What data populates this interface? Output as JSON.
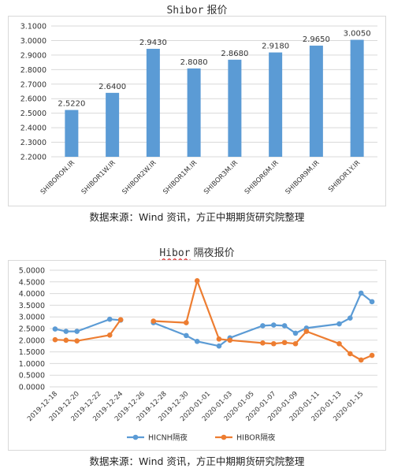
{
  "chart_data": [
    {
      "type": "bar",
      "title_latin": "Shibor",
      "title_rest": " 报价",
      "categories": [
        "SHIBORON.IR",
        "SHIBOR1W.IR",
        "SHIBOR2W.IR",
        "SHIBOR1M.IR",
        "SHIBOR3M.IR",
        "SHIBOR6M.IR",
        "SHIBOR9M.IR",
        "SHIBOR1Y.IR"
      ],
      "values": [
        2.522,
        2.64,
        2.943,
        2.808,
        2.868,
        2.918,
        2.965,
        3.005
      ],
      "value_labels": [
        "2.5220",
        "2.6400",
        "2.9430",
        "2.8080",
        "2.8680",
        "2.9180",
        "2.9650",
        "3.0050"
      ],
      "ylim": [
        2.2,
        3.1
      ],
      "yticks": [
        "2.2000",
        "2.3000",
        "2.4000",
        "2.5000",
        "2.6000",
        "2.7000",
        "2.8000",
        "2.9000",
        "3.0000",
        "3.1000"
      ],
      "bar_color": "#5b9bd5",
      "grid": true,
      "source": "数据来源：Wind 资讯，方正中期期货研究院整理"
    },
    {
      "type": "line",
      "title_latin": "Hibor",
      "title_rest": " 隔夜报价",
      "x_ticks": [
        "2019-12-18",
        "2019-12-20",
        "2019-12-22",
        "2019-12-24",
        "2019-12-26",
        "2019-12-28",
        "2019-12-30",
        "2020-01-01",
        "2020-01-03",
        "2020-01-05",
        "2020-01-07",
        "2020-01-09",
        "2020-01-11",
        "2020-01-13",
        "2020-01-15"
      ],
      "x_range": [
        "2019-12-18",
        "2020-01-16"
      ],
      "ylim": [
        0,
        5
      ],
      "yticks": [
        "0.0000",
        "0.5000",
        "1.0000",
        "1.5000",
        "2.0000",
        "2.5000",
        "3.0000",
        "3.5000",
        "4.0000",
        "4.5000",
        "5.0000"
      ],
      "grid": true,
      "legend": "bottom",
      "series": [
        {
          "name": "HICNH隔夜",
          "color": "#5b9bd5",
          "segments": [
            [
              [
                "2019-12-18",
                2.48
              ],
              [
                "2019-12-19",
                2.38
              ],
              [
                "2019-12-20",
                2.38
              ],
              [
                "2019-12-23",
                2.9
              ],
              [
                "2019-12-24",
                2.86
              ]
            ],
            [
              [
                "2019-12-27",
                2.75
              ],
              [
                "2019-12-30",
                2.2
              ],
              [
                "2019-12-31",
                1.95
              ],
              [
                "2020-01-02",
                1.75
              ],
              [
                "2020-01-03",
                2.1
              ],
              [
                "2020-01-06",
                2.62
              ],
              [
                "2020-01-07",
                2.65
              ],
              [
                "2020-01-08",
                2.62
              ],
              [
                "2020-01-09",
                2.3
              ],
              [
                "2020-01-10",
                2.52
              ],
              [
                "2020-01-13",
                2.7
              ],
              [
                "2020-01-14",
                2.95
              ],
              [
                "2020-01-15",
                4.02
              ],
              [
                "2020-01-16",
                3.65
              ]
            ]
          ]
        },
        {
          "name": "HIBOR隔夜",
          "color": "#ed7d31",
          "segments": [
            [
              [
                "2019-12-18",
                2.02
              ],
              [
                "2019-12-19",
                2.0
              ],
              [
                "2019-12-20",
                1.97
              ],
              [
                "2019-12-23",
                2.22
              ],
              [
                "2019-12-24",
                2.88
              ]
            ],
            [
              [
                "2019-12-27",
                2.82
              ],
              [
                "2019-12-30",
                2.75
              ],
              [
                "2019-12-31",
                4.55
              ],
              [
                "2020-01-02",
                2.05
              ],
              [
                "2020-01-03",
                2.0
              ],
              [
                "2020-01-06",
                1.88
              ],
              [
                "2020-01-07",
                1.85
              ],
              [
                "2020-01-08",
                1.9
              ],
              [
                "2020-01-09",
                1.85
              ],
              [
                "2020-01-10",
                2.38
              ],
              [
                "2020-01-13",
                1.85
              ],
              [
                "2020-01-14",
                1.42
              ],
              [
                "2020-01-15",
                1.15
              ],
              [
                "2020-01-16",
                1.35
              ]
            ]
          ]
        }
      ],
      "source": "数据来源：Wind 资讯，方正中期期货研究院整理"
    }
  ]
}
